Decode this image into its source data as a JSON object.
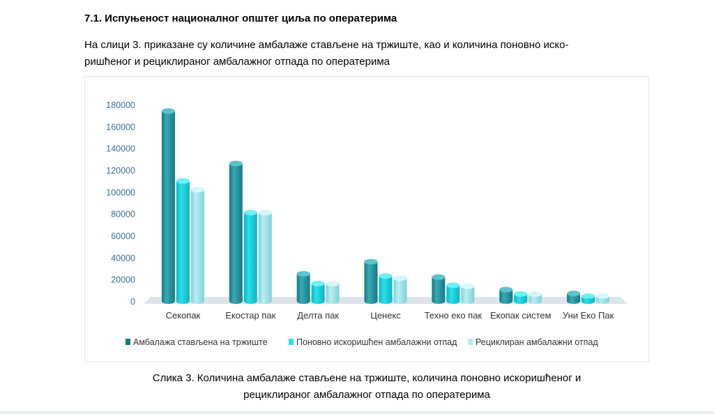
{
  "heading": "7.1. Испуњеност националног општег циља по оператерима",
  "intro": {
    "line1": "На слици 3. приказане су количине амбалаже стављене на тржиште, као и количина поновно иско-",
    "line2": "ришћеног и рециклираног амбалажног отпада по оператерима"
  },
  "caption": {
    "line1": "Слика 3. Количина амбалаже стављене на тржиште, количина поновно искоришћеног и",
    "line2": "рециклираног амбалажног отпада по оператерима"
  },
  "chart_data": {
    "type": "bar",
    "categories": [
      "Секопак",
      "Екостар пак",
      "Делта пак",
      "Ценекс",
      "Техно еко пак",
      "Екопак систем",
      "Уни Еко Пак"
    ],
    "series": [
      {
        "name": "Амбалажа стављена на тржиште",
        "values": [
          174000,
          126000,
          25000,
          36000,
          22000,
          10500,
          7000
        ]
      },
      {
        "name": "Поновно искоришћен амбалажни отпад",
        "values": [
          110000,
          81000,
          16000,
          23000,
          14500,
          6500,
          4500
        ]
      },
      {
        "name": "Рециклиран амбалажни отпад",
        "values": [
          102000,
          81000,
          16000,
          21000,
          13500,
          6500,
          4500
        ]
      }
    ],
    "ylim": [
      0,
      180000
    ],
    "yticks": [
      0,
      20000,
      40000,
      60000,
      80000,
      100000,
      120000,
      140000,
      160000,
      180000
    ],
    "grid": false,
    "legend": "bottom",
    "colors": {
      "series1_light": "#3aa9b4",
      "series1_dark": "#137a85",
      "series1_top": "#5cc3cc",
      "series2_light": "#2ae0ec",
      "series2_dark": "#0fb3c0",
      "series2_top": "#6cf0f6",
      "series3_light": "#b8eef2",
      "series3_dark": "#7fd0d8",
      "series3_top": "#d6f7f9",
      "axis_text": "#3a6f9a",
      "floor": "#dde4ea"
    }
  }
}
